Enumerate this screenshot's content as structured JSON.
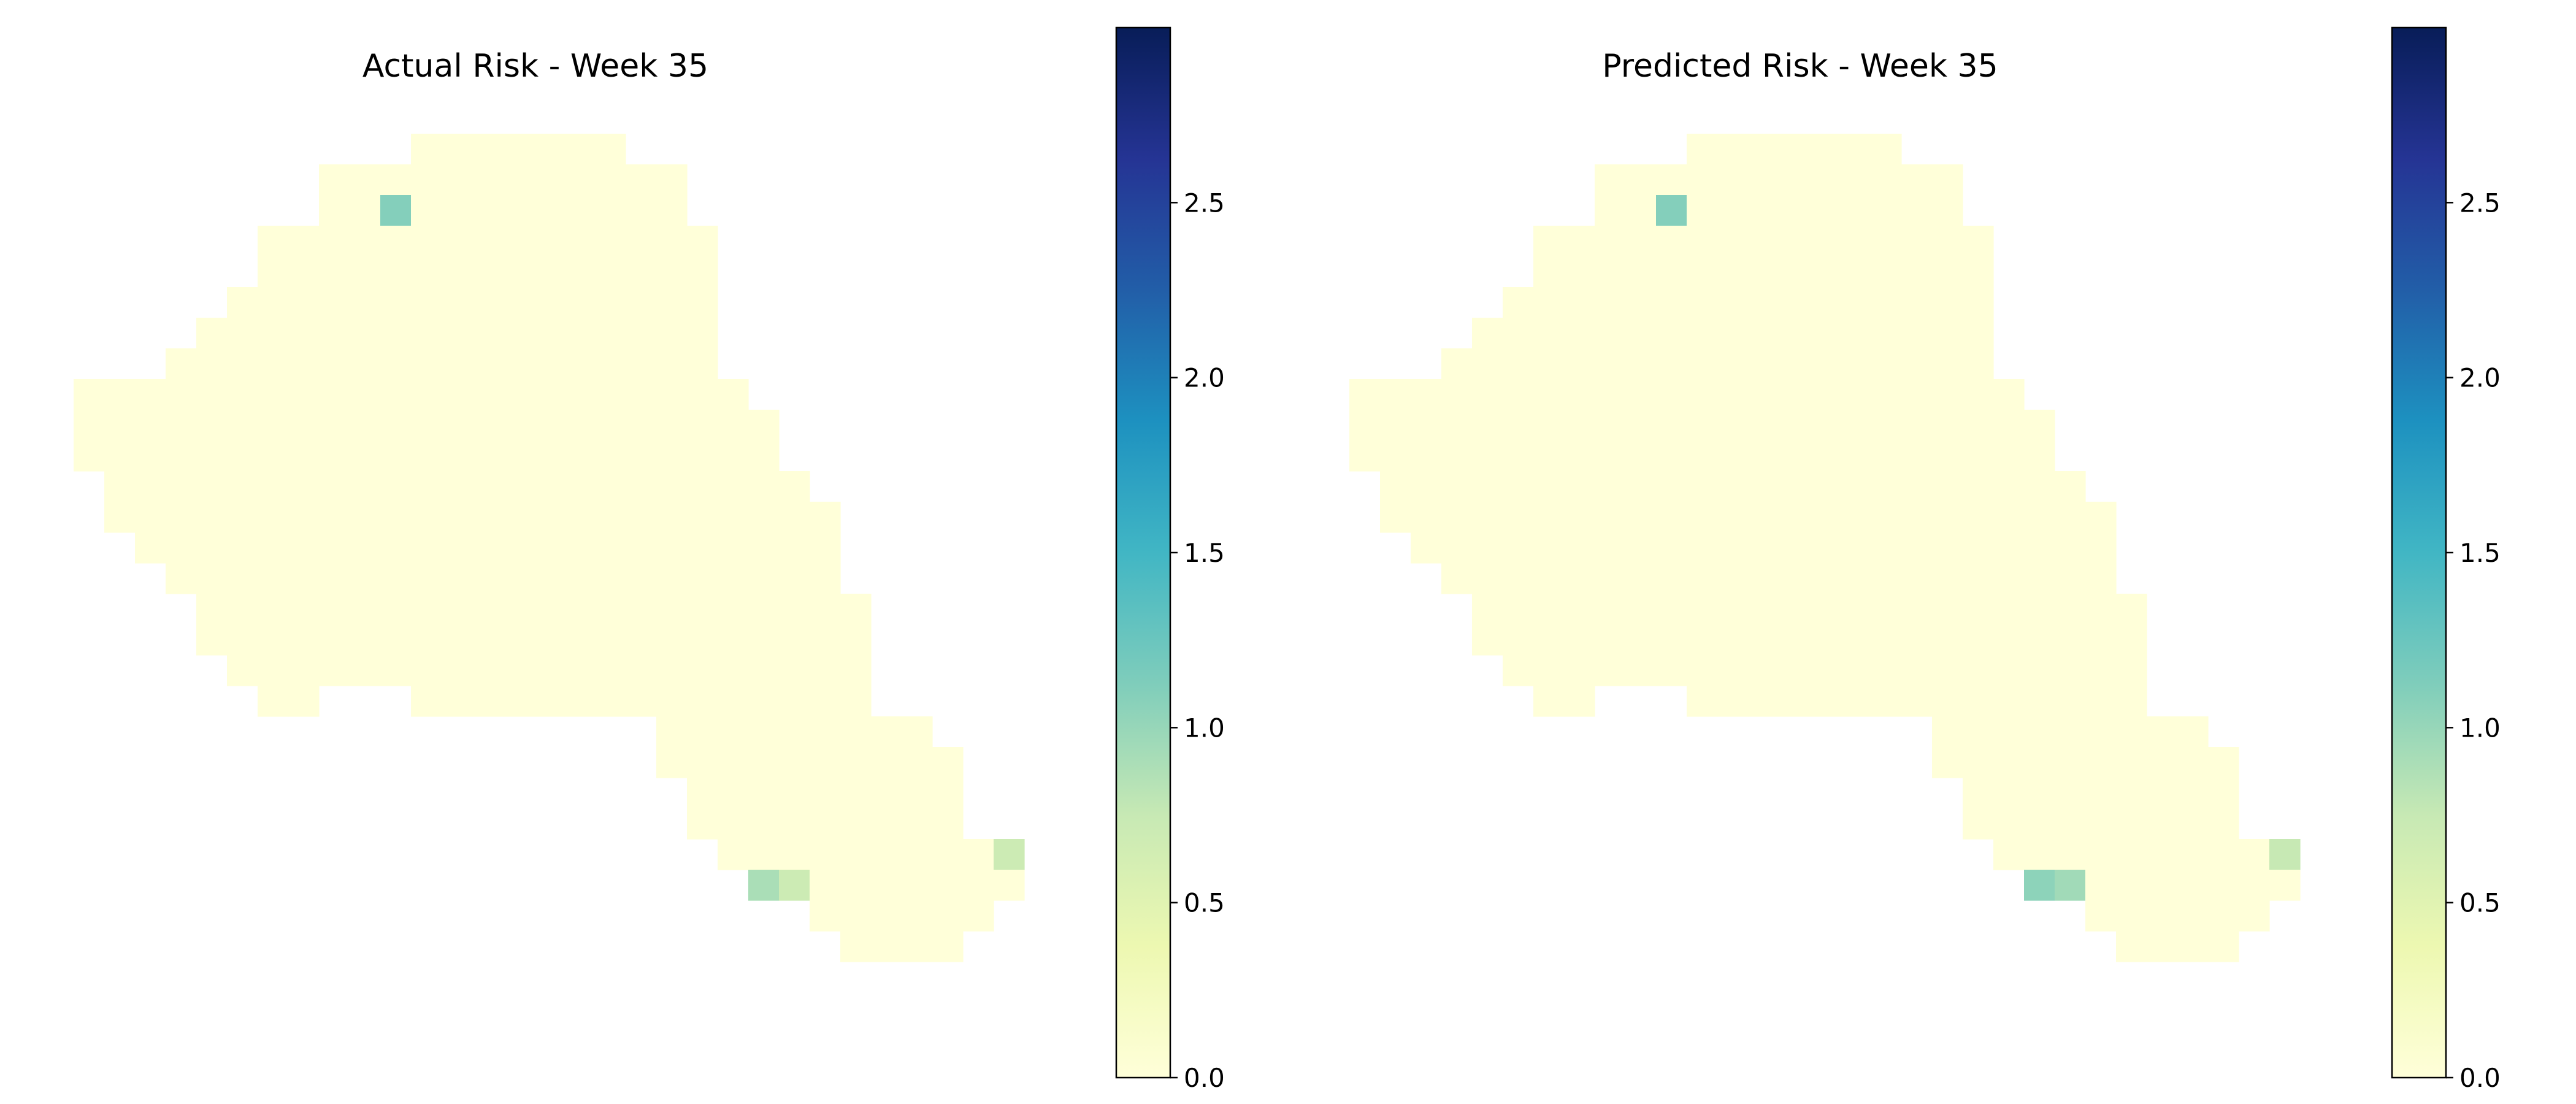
{
  "colorbar": {
    "min": 0,
    "max": 3.0,
    "ticks": [
      0.0,
      0.5,
      1.0,
      1.5,
      2.0,
      2.5
    ],
    "tick_labels": [
      "0.0",
      "0.5",
      "1.0",
      "1.5",
      "2.0",
      "2.5"
    ],
    "colormap": "YlGnBu",
    "stops": [
      "#ffffd9",
      "#edf8b1",
      "#c7e9b4",
      "#7fcdbb",
      "#41b6c4",
      "#1d91c0",
      "#225ea8",
      "#253494",
      "#081d58"
    ]
  },
  "chart_data": [
    {
      "type": "heatmap",
      "title": "Actual Risk - Week 35",
      "grid": false,
      "axes_visible": false,
      "grid_shape": {
        "rows": 27,
        "cols": 31
      },
      "region_mask": [
        "...........xxxxxxx.............",
        "........xxxxxxxxxxxx...........",
        "........xxxxxxxxxxxx...........",
        "......xxxxxxxxxxxxxxx..........",
        "......xxxxxxxxxxxxxxx..........",
        ".....xxxxxxxxxxxxxxxx..........",
        "....xxxxxxxxxxxxxxxxx..........",
        "...xxxxxxxxxxxxxxxxxx..........",
        "xxxxxxxxxxxxxxxxxxxxxx.........",
        "xxxxxxxxxxxxxxxxxxxxxxx........",
        "xxxxxxxxxxxxxxxxxxxxxxx........",
        ".xxxxxxxxxxxxxxxxxxxxxxx.......",
        ".xxxxxxxxxxxxxxxxxxxxxxxx......",
        "..xxxxxxxxxxxxxxxxxxxxxxx......",
        "...xxxxxxxxxxxxxxxxxxxxxx......",
        "....xxxxxxxxxxxxxxxxxxxxxx.....",
        "....xxxxxxxxxxxxxxxxxxxxxx.....",
        ".....xxxxxxxxxxxxxxxxxxxxx.....",
        "......xx...xxxxxxxxxxxxxxx.....",
        "...................xxxxxxxxx...",
        "...................xxxxxxxxxx..",
        "....................xxxxxxxxx..",
        "....................xxxxxxxxx..",
        ".....................xxxxxxxxxx",
        "......................xxxxxxxxx",
        "........................xxxxxx.",
        ".........................xxxx.."
      ],
      "background_value": 0.0,
      "cells": [
        {
          "row": 2,
          "col": 10,
          "value": 1.1
        },
        {
          "row": 23,
          "col": 30,
          "value": 0.7
        },
        {
          "row": 24,
          "col": 22,
          "value": 0.9
        },
        {
          "row": 24,
          "col": 23,
          "value": 0.7
        }
      ]
    },
    {
      "type": "heatmap",
      "title": "Predicted Risk - Week 35",
      "grid": false,
      "axes_visible": false,
      "grid_shape": {
        "rows": 27,
        "cols": 31
      },
      "region_mask": [
        "...........xxxxxxx.............",
        "........xxxxxxxxxxxx...........",
        "........xxxxxxxxxxxx...........",
        "......xxxxxxxxxxxxxxx..........",
        "......xxxxxxxxxxxxxxx..........",
        ".....xxxxxxxxxxxxxxxx..........",
        "....xxxxxxxxxxxxxxxxx..........",
        "...xxxxxxxxxxxxxxxxxx..........",
        "xxxxxxxxxxxxxxxxxxxxxx.........",
        "xxxxxxxxxxxxxxxxxxxxxxx........",
        "xxxxxxxxxxxxxxxxxxxxxxx........",
        ".xxxxxxxxxxxxxxxxxxxxxxx.......",
        ".xxxxxxxxxxxxxxxxxxxxxxxx......",
        "..xxxxxxxxxxxxxxxxxxxxxxx......",
        "...xxxxxxxxxxxxxxxxxxxxxx......",
        "....xxxxxxxxxxxxxxxxxxxxxx.....",
        "....xxxxxxxxxxxxxxxxxxxxxx.....",
        ".....xxxxxxxxxxxxxxxxxxxxx.....",
        "......xx...xxxxxxxxxxxxxxx.....",
        "...................xxxxxxxxx...",
        "...................xxxxxxxxxx..",
        "....................xxxxxxxxx..",
        "....................xxxxxxxxx..",
        ".....................xxxxxxxxxx",
        "......................xxxxxxxxx",
        "........................xxxxxx.",
        ".........................xxxx.."
      ],
      "background_value": 0.0,
      "cells": [
        {
          "row": 2,
          "col": 10,
          "value": 1.1
        },
        {
          "row": 23,
          "col": 30,
          "value": 0.75
        },
        {
          "row": 24,
          "col": 22,
          "value": 1.05
        },
        {
          "row": 24,
          "col": 23,
          "value": 0.95
        }
      ]
    }
  ]
}
